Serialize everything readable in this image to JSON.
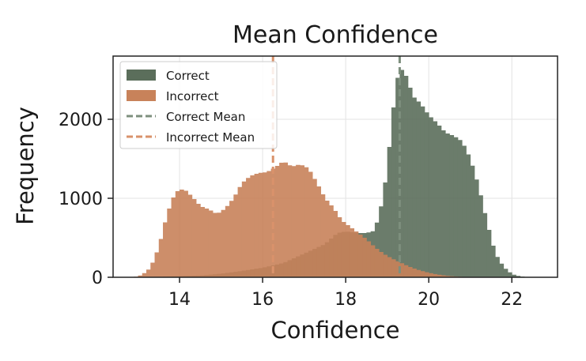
{
  "chart_data": {
    "type": "bar",
    "title": "Mean Confidence",
    "xlabel": "Confidence",
    "ylabel": "Frequency",
    "xlim": [
      12.4,
      23.1
    ],
    "ylim": [
      0,
      2800
    ],
    "xticks": [
      14,
      16,
      18,
      20,
      22
    ],
    "yticks": [
      0,
      1000,
      2000
    ],
    "grid": true,
    "legend_position": "upper-left",
    "bin_width": 0.1,
    "series": [
      {
        "name": "Correct",
        "kind": "histogram",
        "color": "#5b6e5b",
        "points": [
          [
            12.8,
            0
          ],
          [
            13.0,
            2
          ],
          [
            13.5,
            6
          ],
          [
            14.0,
            15
          ],
          [
            14.5,
            22
          ],
          [
            15.0,
            45
          ],
          [
            15.5,
            80
          ],
          [
            16.0,
            120
          ],
          [
            16.5,
            180
          ],
          [
            17.0,
            300
          ],
          [
            17.5,
            420
          ],
          [
            17.8,
            560
          ],
          [
            18.0,
            580
          ],
          [
            18.3,
            560
          ],
          [
            18.5,
            560
          ],
          [
            18.7,
            590
          ],
          [
            18.9,
            1000
          ],
          [
            19.0,
            1400
          ],
          [
            19.1,
            1900
          ],
          [
            19.2,
            2400
          ],
          [
            19.3,
            2650
          ],
          [
            19.4,
            2600
          ],
          [
            19.5,
            2500
          ],
          [
            19.6,
            2300
          ],
          [
            19.8,
            2200
          ],
          [
            20.0,
            2050
          ],
          [
            20.2,
            1950
          ],
          [
            20.4,
            1830
          ],
          [
            20.6,
            1790
          ],
          [
            20.8,
            1720
          ],
          [
            21.0,
            1500
          ],
          [
            21.2,
            1150
          ],
          [
            21.4,
            700
          ],
          [
            21.6,
            300
          ],
          [
            21.8,
            130
          ],
          [
            22.0,
            40
          ],
          [
            22.2,
            10
          ],
          [
            22.5,
            0
          ]
        ],
        "values_note_removed": true
      },
      {
        "name": "Incorrect",
        "kind": "histogram",
        "color": "#c8825a",
        "points": [
          [
            12.9,
            0
          ],
          [
            13.1,
            30
          ],
          [
            13.3,
            120
          ],
          [
            13.5,
            380
          ],
          [
            13.7,
            800
          ],
          [
            13.9,
            1080
          ],
          [
            14.1,
            1120
          ],
          [
            14.3,
            1020
          ],
          [
            14.5,
            900
          ],
          [
            14.7,
            860
          ],
          [
            14.9,
            800
          ],
          [
            15.1,
            870
          ],
          [
            15.3,
            1000
          ],
          [
            15.5,
            1190
          ],
          [
            15.7,
            1280
          ],
          [
            15.9,
            1320
          ],
          [
            16.1,
            1330
          ],
          [
            16.3,
            1390
          ],
          [
            16.5,
            1470
          ],
          [
            16.7,
            1400
          ],
          [
            16.9,
            1430
          ],
          [
            17.1,
            1380
          ],
          [
            17.3,
            1200
          ],
          [
            17.5,
            1000
          ],
          [
            17.7,
            880
          ],
          [
            17.9,
            720
          ],
          [
            18.1,
            640
          ],
          [
            18.3,
            560
          ],
          [
            18.5,
            480
          ],
          [
            18.7,
            380
          ],
          [
            18.9,
            300
          ],
          [
            19.1,
            240
          ],
          [
            19.3,
            190
          ],
          [
            19.5,
            140
          ],
          [
            19.7,
            100
          ],
          [
            19.9,
            70
          ],
          [
            20.1,
            45
          ],
          [
            20.3,
            28
          ],
          [
            20.5,
            15
          ],
          [
            20.8,
            5
          ],
          [
            21.2,
            0
          ]
        ]
      }
    ],
    "mean_lines": [
      {
        "name": "Correct Mean",
        "x": 19.3,
        "color": "#7d8f7d"
      },
      {
        "name": "Incorrect Mean",
        "x": 16.25,
        "color": "#d9926b"
      }
    ],
    "legend": [
      "Correct",
      "Incorrect",
      "Correct Mean",
      "Incorrect Mean"
    ]
  }
}
